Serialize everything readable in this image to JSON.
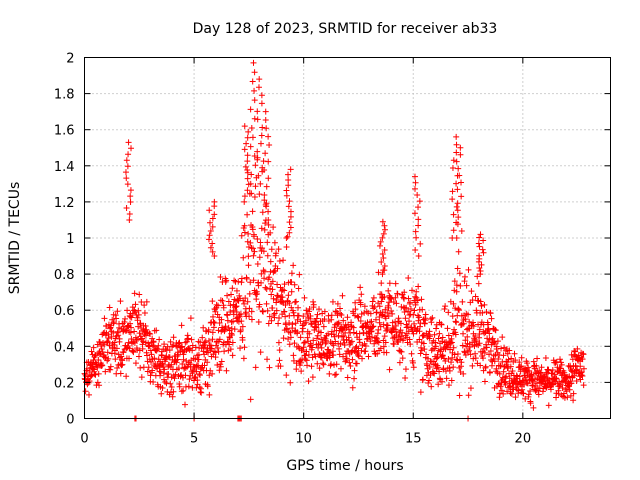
{
  "chart_data": {
    "type": "scatter",
    "title": "Day 128 of 2023, SRMTID for receiver ab33",
    "xlabel": "GPS time / hours",
    "ylabel": "SRMTID / TECUs",
    "xlim": [
      0,
      24
    ],
    "ylim": [
      0,
      2
    ],
    "xticks": [
      0,
      5,
      10,
      15,
      20
    ],
    "yticks": [
      0,
      0.2,
      0.4,
      0.6,
      0.8,
      1,
      1.2,
      1.4,
      1.6,
      1.8,
      2
    ],
    "xtick_labels": [
      "0",
      "5",
      "10",
      "15",
      "20"
    ],
    "ytick_labels": [
      "0",
      "0.2",
      "0.4",
      "0.6",
      "0.8",
      "1",
      "1.2",
      "1.4",
      "1.6",
      "1.8",
      "2"
    ],
    "grid": true,
    "marker": "+",
    "series_color": "#ff0000",
    "envelope_description": "Dense cloud of '+' markers; typical values (hour, mean, spread)",
    "envelope": [
      [
        0.0,
        0.22,
        0.06
      ],
      [
        0.5,
        0.28,
        0.08
      ],
      [
        1.0,
        0.4,
        0.12
      ],
      [
        1.5,
        0.42,
        0.12
      ],
      [
        2.0,
        0.48,
        0.12
      ],
      [
        2.3,
        0.55,
        0.2
      ],
      [
        2.6,
        0.45,
        0.15
      ],
      [
        3.0,
        0.38,
        0.1
      ],
      [
        3.5,
        0.28,
        0.08
      ],
      [
        4.0,
        0.3,
        0.12
      ],
      [
        4.5,
        0.32,
        0.12
      ],
      [
        5.0,
        0.3,
        0.1
      ],
      [
        5.5,
        0.35,
        0.12
      ],
      [
        6.0,
        0.45,
        0.15
      ],
      [
        6.5,
        0.55,
        0.15
      ],
      [
        7.0,
        0.6,
        0.15
      ],
      [
        7.5,
        0.85,
        0.35
      ],
      [
        8.0,
        0.9,
        0.4
      ],
      [
        8.5,
        0.75,
        0.25
      ],
      [
        9.0,
        0.6,
        0.2
      ],
      [
        9.5,
        0.55,
        0.2
      ],
      [
        10.0,
        0.45,
        0.15
      ],
      [
        10.5,
        0.45,
        0.12
      ],
      [
        11.0,
        0.42,
        0.12
      ],
      [
        11.5,
        0.45,
        0.12
      ],
      [
        12.0,
        0.45,
        0.15
      ],
      [
        12.5,
        0.5,
        0.15
      ],
      [
        13.0,
        0.48,
        0.12
      ],
      [
        13.5,
        0.55,
        0.15
      ],
      [
        14.0,
        0.55,
        0.15
      ],
      [
        14.5,
        0.5,
        0.15
      ],
      [
        15.0,
        0.55,
        0.15
      ],
      [
        15.5,
        0.4,
        0.15
      ],
      [
        16.0,
        0.35,
        0.12
      ],
      [
        16.5,
        0.4,
        0.15
      ],
      [
        17.0,
        0.55,
        0.25
      ],
      [
        17.5,
        0.5,
        0.18
      ],
      [
        18.0,
        0.5,
        0.15
      ],
      [
        18.5,
        0.4,
        0.12
      ],
      [
        19.0,
        0.3,
        0.1
      ],
      [
        19.5,
        0.25,
        0.08
      ],
      [
        20.0,
        0.22,
        0.07
      ],
      [
        20.5,
        0.22,
        0.07
      ],
      [
        21.0,
        0.2,
        0.06
      ],
      [
        21.5,
        0.22,
        0.07
      ],
      [
        22.0,
        0.2,
        0.06
      ],
      [
        22.5,
        0.28,
        0.1
      ],
      [
        22.8,
        0.3,
        0.1
      ]
    ],
    "spikes": [
      {
        "x": 2.0,
        "y_min": 1.1,
        "y_max": 1.53
      },
      {
        "x": 7.4,
        "y_min": 1.2,
        "y_max": 1.62
      },
      {
        "x": 7.7,
        "y_min": 1.3,
        "y_max": 1.97
      },
      {
        "x": 8.0,
        "y_min": 1.3,
        "y_max": 1.88
      },
      {
        "x": 8.3,
        "y_min": 1.1,
        "y_max": 1.7
      },
      {
        "x": 9.3,
        "y_min": 1.0,
        "y_max": 1.38
      },
      {
        "x": 5.8,
        "y_min": 0.9,
        "y_max": 1.2
      },
      {
        "x": 13.6,
        "y_min": 0.8,
        "y_max": 1.09
      },
      {
        "x": 15.2,
        "y_min": 0.9,
        "y_max": 1.34
      },
      {
        "x": 16.9,
        "y_min": 1.0,
        "y_max": 1.56
      },
      {
        "x": 17.1,
        "y_min": 1.0,
        "y_max": 1.5
      },
      {
        "x": 18.1,
        "y_min": 0.8,
        "y_max": 1.02
      }
    ],
    "zero_points": [
      2.3,
      2.35,
      5.0,
      7.0,
      7.05,
      7.1,
      7.15,
      17.5
    ]
  }
}
